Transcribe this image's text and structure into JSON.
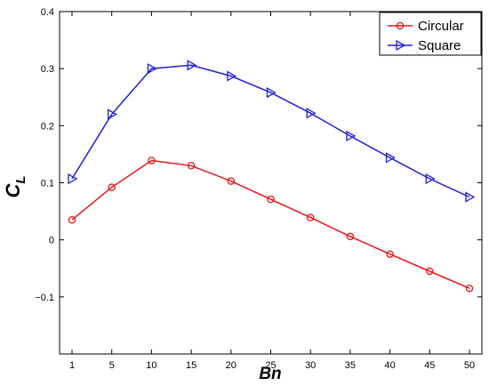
{
  "chart_data": {
    "type": "line",
    "categories": [
      "1",
      "5",
      "10",
      "15",
      "20",
      "25",
      "30",
      "35",
      "40",
      "45",
      "50"
    ],
    "xlabel": "Bn",
    "ylabel": "C",
    "ylabel_sub": "L",
    "ylim": [
      -0.2,
      0.4
    ],
    "yticks": [
      {
        "v": -0.1,
        "label": "-0.1"
      },
      {
        "v": 0,
        "label": "0"
      },
      {
        "v": 0.1,
        "label": "0.1"
      },
      {
        "v": 0.2,
        "label": "0.2"
      },
      {
        "v": 0.3,
        "label": "0.3"
      },
      {
        "v": 0.4,
        "label": "0.4"
      }
    ],
    "grid": false,
    "legend_position": "top-right",
    "series": [
      {
        "name": "Circular",
        "marker": "circle",
        "color": "#e8141b",
        "values": [
          0.035,
          0.092,
          0.139,
          0.13,
          0.103,
          0.071,
          0.039,
          0.006,
          -0.025,
          -0.055,
          -0.085
        ]
      },
      {
        "name": "Square",
        "marker": "triangle-right",
        "color": "#1f1fd6",
        "values": [
          0.107,
          0.22,
          0.3,
          0.306,
          0.287,
          0.258,
          0.222,
          0.182,
          0.144,
          0.107,
          0.075
        ]
      }
    ]
  }
}
